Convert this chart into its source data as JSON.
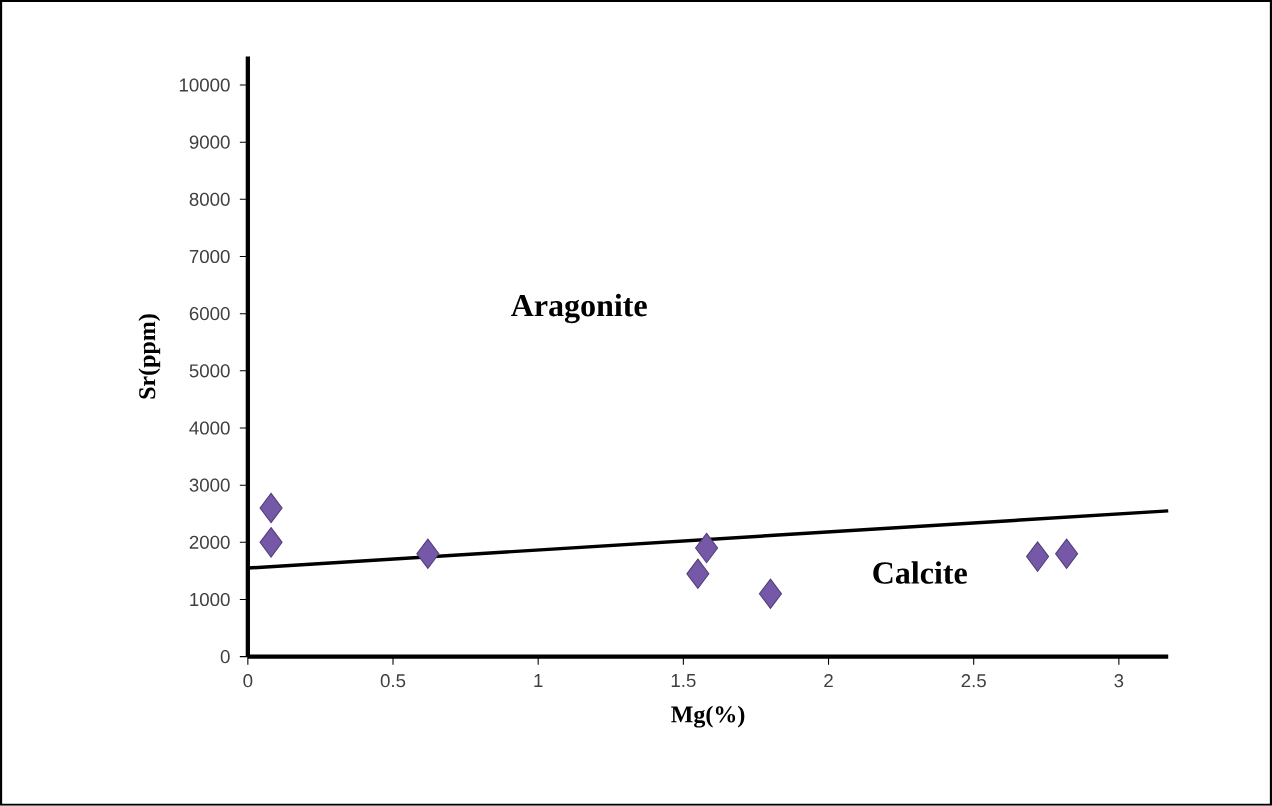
{
  "chart_data": {
    "type": "scatter",
    "xlabel": "Mg(%)",
    "ylabel": "Sr(ppm)",
    "xlim": [
      0,
      3.17
    ],
    "ylim": [
      0,
      10500
    ],
    "xticks": [
      0,
      0.5,
      1,
      1.5,
      2,
      2.5,
      3
    ],
    "yticks": [
      0,
      1000,
      2000,
      3000,
      4000,
      5000,
      6000,
      7000,
      8000,
      9000,
      10000
    ],
    "marker": "diamond",
    "series": [
      {
        "color": "#7559a8",
        "x": [
          0.08,
          0.08,
          0.62,
          1.58,
          1.55,
          1.8,
          2.72,
          2.82
        ],
        "values": [
          2600,
          2000,
          1800,
          1900,
          1450,
          1100,
          1750,
          1800
        ]
      },
      {
        "type": "line",
        "color": "#000000",
        "marker": "none",
        "x": [
          0,
          3.17
        ],
        "values": [
          1550,
          2550
        ]
      }
    ],
    "annotations": [
      "Aragonite",
      "Calcite"
    ]
  }
}
